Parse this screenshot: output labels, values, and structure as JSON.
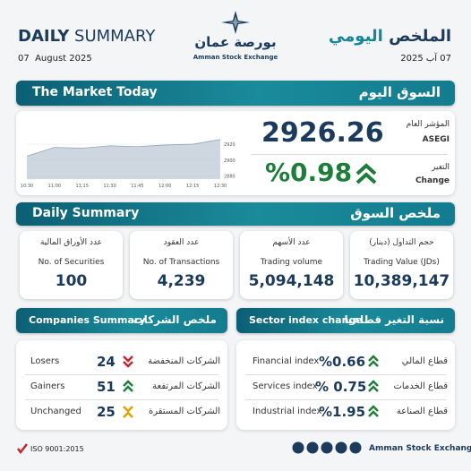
{
  "header": {
    "title_bold": "DAILY",
    "title_light": "SUMMARY",
    "date": "07  August 2025",
    "logo_ar": "بورصة عمان",
    "logo_en": "Amman Stock Exchange",
    "title_ar_1": "الملخص",
    "title_ar_2": "اليومي",
    "date_ar": "07 آب 2025"
  },
  "market_today": {
    "title": "The Market Today",
    "title_ar": "السوق اليوم",
    "index_label_ar": "المؤشر العام",
    "index_label": "ASEGI",
    "index_value": "2926.26",
    "change_label_ar": "التغير",
    "change_label": "Change",
    "change_value": "%0.98"
  },
  "chart": {
    "type": "line",
    "categories": [
      "10:30",
      "11:00",
      "11:15",
      "11:30",
      "11:45",
      "12:00",
      "12:15",
      "12:30"
    ],
    "values": [
      2905,
      2916,
      2915,
      2918,
      2917,
      2919,
      2920,
      2926
    ],
    "color": "#b9c6d3",
    "ylim": [
      2876,
      2928
    ],
    "yticks": [
      2880,
      2900,
      2920
    ]
  },
  "daily_summary": {
    "title": "Daily Summary",
    "title_ar": "ملخص السوق",
    "cards": [
      {
        "label_ar": "عدد الأوراق المالية",
        "label": "No. of Securities",
        "value": "100"
      },
      {
        "label_ar": "عدد العقود",
        "label": "No. of Transactions",
        "value": "4,239"
      },
      {
        "label_ar": "عدد الأسهم",
        "label": "Trading volume",
        "value": "5,094,148"
      },
      {
        "label_ar": "حجم التداول (دينار)",
        "label": "Trading Value (JDs)",
        "value": "10,389,147"
      }
    ]
  },
  "companies_summary": {
    "title": "Companies Summary",
    "title_ar": "ملخص الشركات",
    "rows": [
      {
        "label": "Losers",
        "value": "24",
        "label_ar": "الشركات المنخفضة"
      },
      {
        "label": "Gainers",
        "value": "51",
        "label_ar": "الشركات المرتفعة"
      },
      {
        "label": "Unchanged",
        "value": "25",
        "label_ar": "الشركات المستقرة"
      }
    ]
  },
  "sector_change": {
    "title": "Sector index change",
    "title_ar": "نسبة التغير قطاعيا",
    "rows": [
      {
        "label": "Financial index",
        "value": "%0.66",
        "label_ar": "قطاع المالي"
      },
      {
        "label": "Services index",
        "value": "% 0.75",
        "label_ar": "قطاع الخدمات"
      },
      {
        "label": "Industrial index",
        "value": "%1.95",
        "label_ar": "قطاع الصناعة"
      }
    ]
  },
  "footer": {
    "iso": "ISO 9001:2015",
    "name": "Amman Stock Exchange"
  }
}
